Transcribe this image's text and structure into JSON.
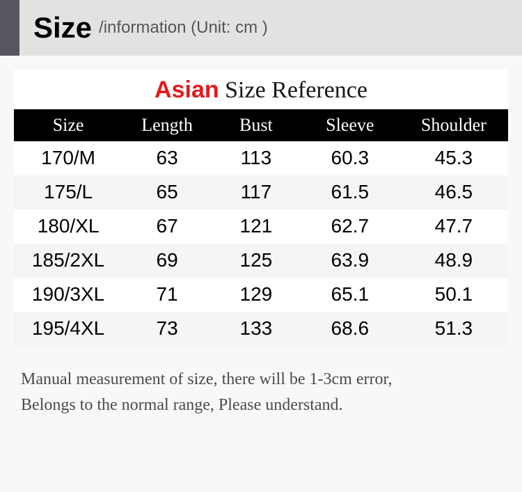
{
  "header": {
    "title": "Size",
    "sub": "/information (",
    "unit": " Unit: cm )"
  },
  "subtitle": {
    "accent": "Asian",
    "rest": " Size Reference"
  },
  "table": {
    "columns": [
      "Size",
      "Length",
      "Bust",
      "Sleeve",
      "Shoulder"
    ],
    "rows": [
      [
        "170/M",
        "63",
        "113",
        "60.3",
        "45.3"
      ],
      [
        "175/L",
        "65",
        "117",
        "61.5",
        "46.5"
      ],
      [
        "180/XL",
        "67",
        "121",
        "62.7",
        "47.7"
      ],
      [
        "185/2XL",
        "69",
        "125",
        "63.9",
        "48.9"
      ],
      [
        "190/3XL",
        "71",
        "129",
        "65.1",
        "50.1"
      ],
      [
        "195/4XL",
        "73",
        "133",
        "68.6",
        "51.3"
      ]
    ],
    "alt_row_bg": "#f5f5f5",
    "row_bg": "#ffffff",
    "header_bg": "#000000",
    "header_fg": "#ffffff",
    "accent_color": "#e4191d"
  },
  "footer": {
    "line1": "Manual measurement of size, there will be 1-3cm error,",
    "line2": "Belongs to the normal range, Please understand."
  }
}
